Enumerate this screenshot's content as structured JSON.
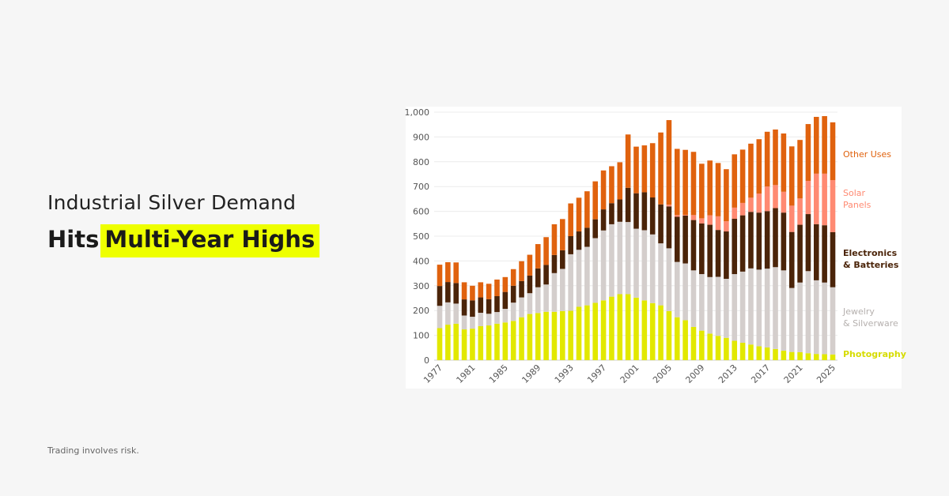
{
  "header": {
    "line1": "Industrial Silver Demand",
    "line2_plain": "Hits",
    "line2_highlight": "Multi-Year Highs"
  },
  "footer": {
    "disclaimer": "Trading involves risk."
  },
  "colors": {
    "background": "#f6f6f6",
    "highlight": "#eeff00"
  },
  "chart_data": {
    "type": "bar",
    "stacked": true,
    "title": "",
    "xlabel": "",
    "ylabel": "",
    "ylim": [
      0,
      1000
    ],
    "yticks": [
      "0",
      "100",
      "200",
      "300",
      "400",
      "500",
      "600",
      "700",
      "800",
      "900",
      "1,000"
    ],
    "ytick_values": [
      0,
      100,
      200,
      300,
      400,
      500,
      600,
      700,
      800,
      900,
      1000
    ],
    "xtick_labels": [
      "1977",
      "1981",
      "1985",
      "1989",
      "1993",
      "1997",
      "2001",
      "2005",
      "2009",
      "2013",
      "2017",
      "2021",
      "2025"
    ],
    "grid": "horizontal",
    "legend_placement": "right",
    "categories": [
      1977,
      1978,
      1979,
      1980,
      1981,
      1982,
      1983,
      1984,
      1985,
      1986,
      1987,
      1988,
      1989,
      1990,
      1991,
      1992,
      1993,
      1994,
      1995,
      1996,
      1997,
      1998,
      1999,
      2000,
      2001,
      2002,
      2003,
      2004,
      2005,
      2006,
      2007,
      2008,
      2009,
      2010,
      2011,
      2012,
      2013,
      2014,
      2015,
      2016,
      2017,
      2018,
      2019,
      2020,
      2021,
      2022,
      2023,
      2024,
      2025
    ],
    "series": [
      {
        "name": "Photography",
        "color": "#e2e800",
        "values": [
          129,
          143,
          147,
          124,
          127,
          137,
          140,
          147,
          152,
          158,
          173,
          186,
          190,
          195,
          195,
          198,
          199,
          215,
          221,
          231,
          241,
          256,
          266,
          266,
          252,
          241,
          230,
          221,
          198,
          173,
          161,
          134,
          119,
          107,
          98,
          90,
          78,
          70,
          63,
          56,
          51,
          45,
          38,
          33,
          32,
          28,
          25,
          24,
          23
        ]
      },
      {
        "name": "Jewelry & Silverware",
        "color": "#d4cecc",
        "values": [
          90,
          90,
          81,
          56,
          48,
          54,
          47,
          47,
          55,
          74,
          80,
          84,
          104,
          110,
          156,
          170,
          228,
          230,
          236,
          261,
          282,
          292,
          292,
          291,
          278,
          283,
          277,
          250,
          253,
          223,
          229,
          228,
          228,
          228,
          238,
          238,
          269,
          287,
          307,
          309,
          318,
          330,
          324,
          258,
          281,
          331,
          297,
          289,
          271
        ]
      },
      {
        "name": "Electronics & Batteries",
        "color": "#4b2409",
        "values": [
          80,
          82,
          83,
          65,
          66,
          62,
          59,
          64,
          68,
          68,
          66,
          71,
          76,
          79,
          73,
          75,
          73,
          74,
          77,
          76,
          85,
          85,
          90,
          138,
          143,
          153,
          149,
          157,
          169,
          182,
          193,
          203,
          204,
          211,
          189,
          191,
          223,
          227,
          228,
          230,
          232,
          238,
          233,
          226,
          233,
          230,
          226,
          231,
          222
        ]
      },
      {
        "name": "Solar Panels",
        "color": "#ff8a72",
        "values": [
          0,
          0,
          0,
          0,
          0,
          0,
          0,
          0,
          0,
          0,
          0,
          0,
          0,
          0,
          0,
          0,
          0,
          0,
          0,
          0,
          0,
          0,
          0,
          0,
          0,
          0,
          0,
          0,
          7,
          7,
          3,
          20,
          21,
          38,
          55,
          41,
          45,
          50,
          57,
          77,
          99,
          93,
          84,
          106,
          106,
          134,
          204,
          208,
          210
        ]
      },
      {
        "name": "Other Uses",
        "color": "#e0620e",
        "values": [
          86,
          80,
          83,
          69,
          59,
          61,
          62,
          67,
          60,
          67,
          80,
          84,
          98,
          112,
          124,
          126,
          132,
          136,
          147,
          153,
          157,
          149,
          150,
          215,
          188,
          189,
          219,
          290,
          341,
          267,
          262,
          255,
          220,
          221,
          215,
          210,
          215,
          215,
          218,
          219,
          221,
          224,
          235,
          239,
          236,
          229,
          229,
          232,
          233
        ]
      }
    ],
    "legend": [
      {
        "lines": [
          "Other Uses"
        ],
        "color": "#e0620e"
      },
      {
        "lines": [
          "Solar",
          "Panels"
        ],
        "color": "#ff8a72"
      },
      {
        "lines": [
          "Electronics",
          "& Batteries"
        ],
        "color": "#4b2409"
      },
      {
        "lines": [
          "Jewelry",
          "& Silverware"
        ],
        "color": "#b5b0ae"
      },
      {
        "lines": [
          "Photography"
        ],
        "color": "#d6dc00"
      }
    ]
  }
}
